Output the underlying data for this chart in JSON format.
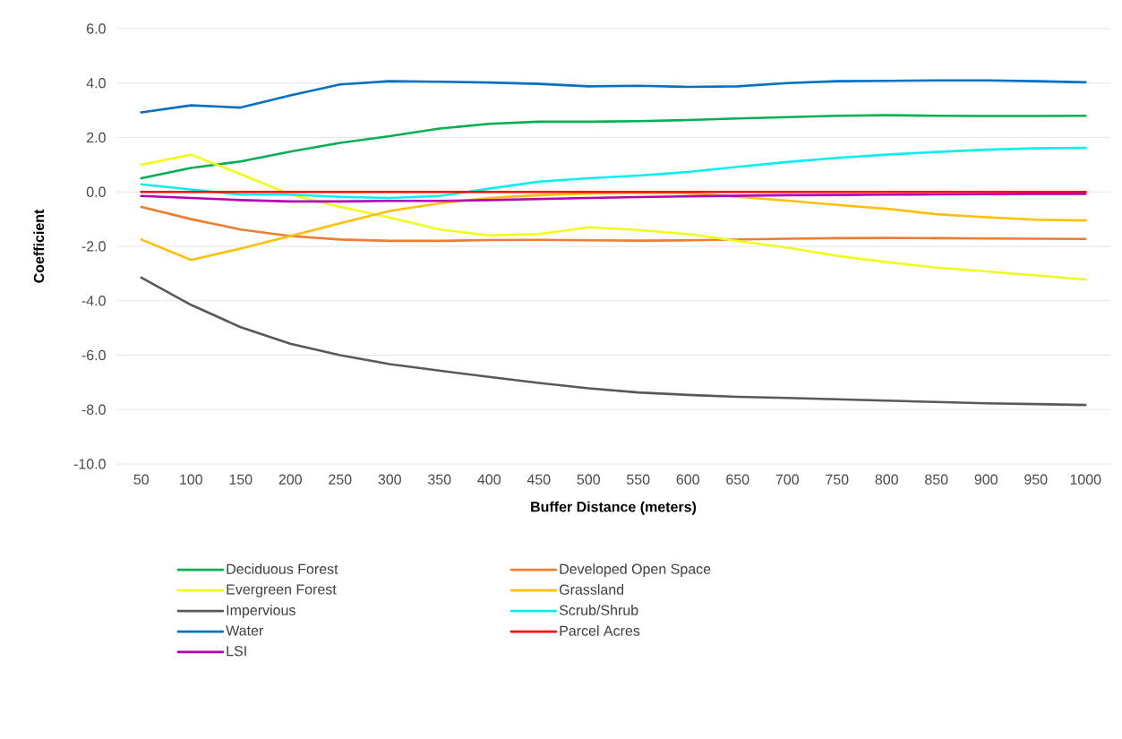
{
  "chart_data": {
    "type": "line",
    "xlabel": "Buffer Distance (meters)",
    "ylabel": "Coefficient",
    "categories": [
      "50",
      "100",
      "150",
      "200",
      "250",
      "300",
      "350",
      "400",
      "450",
      "500",
      "550",
      "600",
      "650",
      "700",
      "750",
      "800",
      "850",
      "900",
      "950",
      "1000"
    ],
    "ylim": [
      -10,
      6
    ],
    "yticks": [
      {
        "value": -10,
        "label": "-10.0"
      },
      {
        "value": -8,
        "label": "-8.0"
      },
      {
        "value": -6,
        "label": "-6.0"
      },
      {
        "value": -4,
        "label": "-4.0"
      },
      {
        "value": -2,
        "label": "-2.0"
      },
      {
        "value": 0,
        "label": "0.0"
      },
      {
        "value": 2,
        "label": "2.0"
      },
      {
        "value": 4,
        "label": "4.0"
      },
      {
        "value": 6,
        "label": "6.0"
      }
    ],
    "grid": "y",
    "legend": "bottom",
    "marker": "none",
    "line_style": "solid",
    "series": [
      {
        "name": "Deciduous Forest",
        "color": "#00b050",
        "values": [
          0.5,
          0.88,
          1.12,
          1.48,
          1.8,
          2.05,
          2.33,
          2.5,
          2.58,
          2.58,
          2.6,
          2.64,
          2.7,
          2.75,
          2.8,
          2.82,
          2.8,
          2.79,
          2.79,
          2.8
        ]
      },
      {
        "name": "Developed Open Space",
        "color": "#ed7d31",
        "values": [
          -0.55,
          -1.0,
          -1.38,
          -1.62,
          -1.75,
          -1.8,
          -1.8,
          -1.77,
          -1.76,
          -1.78,
          -1.79,
          -1.78,
          -1.75,
          -1.72,
          -1.7,
          -1.69,
          -1.7,
          -1.71,
          -1.72,
          -1.73
        ]
      },
      {
        "name": "Evergreen Forest",
        "color": "#eeff1a",
        "values": [
          1.0,
          1.37,
          0.65,
          -0.1,
          -0.55,
          -0.95,
          -1.38,
          -1.6,
          -1.55,
          -1.3,
          -1.4,
          -1.55,
          -1.8,
          -2.05,
          -2.35,
          -2.58,
          -2.78,
          -2.92,
          -3.07,
          -3.22
        ]
      },
      {
        "name": "Grassland",
        "color": "#ffc000",
        "values": [
          -1.75,
          -2.5,
          -2.08,
          -1.62,
          -1.15,
          -0.7,
          -0.42,
          -0.22,
          -0.12,
          -0.06,
          -0.03,
          -0.05,
          -0.18,
          -0.32,
          -0.48,
          -0.62,
          -0.82,
          -0.93,
          -1.02,
          -1.05
        ]
      },
      {
        "name": "Impervious",
        "color": "#595959",
        "values": [
          -3.15,
          -4.15,
          -4.97,
          -5.58,
          -6.0,
          -6.33,
          -6.57,
          -6.8,
          -7.02,
          -7.22,
          -7.37,
          -7.46,
          -7.53,
          -7.57,
          -7.62,
          -7.67,
          -7.72,
          -7.77,
          -7.8,
          -7.83
        ]
      },
      {
        "name": "Scrub/Shrub",
        "color": "#00f0f0",
        "values": [
          0.28,
          null,
          -0.1,
          -0.1,
          -0.18,
          -0.22,
          -0.15,
          0.12,
          0.38,
          0.5,
          0.6,
          0.73,
          0.92,
          1.1,
          1.25,
          1.37,
          1.47,
          1.55,
          1.6,
          1.62
        ]
      },
      {
        "name": "Water",
        "color": "#0070c0",
        "values": [
          2.92,
          3.18,
          3.1,
          3.55,
          3.95,
          4.07,
          4.05,
          4.02,
          3.97,
          3.88,
          3.9,
          3.86,
          3.88,
          4.0,
          4.07,
          4.08,
          4.1,
          4.1,
          4.07,
          4.03
        ]
      },
      {
        "name": "Parcel Acres",
        "color": "#ff0000",
        "values": [
          0.0,
          0.0,
          0.0,
          0.0,
          0.0,
          0.0,
          0.0,
          0.0,
          0.0,
          0.0,
          0.0,
          0.0,
          0.0,
          0.0,
          0.0,
          0.0,
          0.0,
          0.0,
          0.0,
          0.0
        ]
      },
      {
        "name": "LSI",
        "color": "#b400b4",
        "values": [
          -0.15,
          -0.22,
          -0.3,
          -0.35,
          -0.35,
          -0.33,
          -0.33,
          -0.3,
          -0.26,
          -0.22,
          -0.19,
          -0.16,
          -0.14,
          -0.12,
          -0.11,
          -0.1,
          -0.09,
          -0.08,
          -0.07,
          -0.07
        ]
      }
    ]
  }
}
